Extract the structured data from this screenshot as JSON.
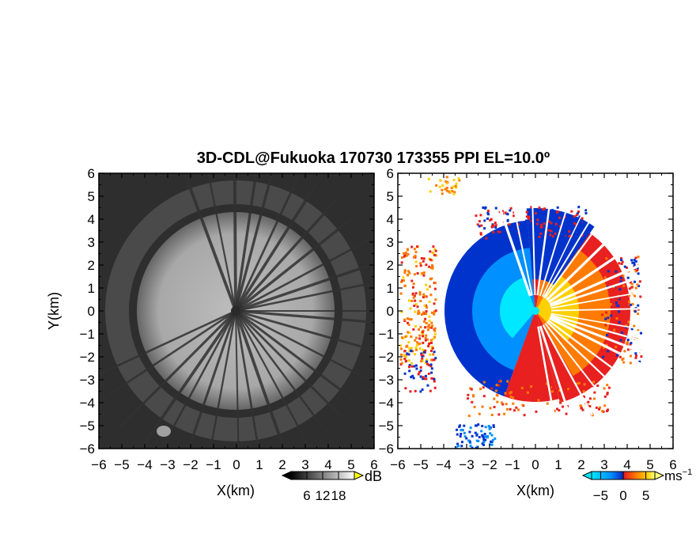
{
  "chart_data": [
    {
      "type": "heatmap",
      "title": "3D-CDL@Fukuoka 170730 173355 PPI EL=10.0º",
      "panel": "reflectivity",
      "xlabel": "X(km)",
      "ylabel": "Y(km)",
      "xlim": [
        -6,
        6
      ],
      "ylim": [
        -6,
        6
      ],
      "xticks": [
        "-6",
        "-5",
        "-4",
        "-3",
        "-2",
        "-1",
        "0",
        "1",
        "2",
        "3",
        "4",
        "5",
        "6"
      ],
      "yticks": [
        "6",
        "5",
        "4",
        "3",
        "2",
        "1",
        "0",
        "-1",
        "-2",
        "-3",
        "-4",
        "-5",
        "-6"
      ],
      "colorbar": {
        "unit": "dB",
        "ticks": [
          "6",
          "12",
          "18"
        ],
        "range": [
          0,
          24
        ],
        "colors": [
          "#000000",
          "#ffffff"
        ]
      },
      "grid": false
    },
    {
      "type": "heatmap",
      "panel": "doppler-velocity",
      "xlabel": "X(km)",
      "xlim": [
        -6,
        6
      ],
      "ylim": [
        -6,
        6
      ],
      "xticks": [
        "-6",
        "-5",
        "-4",
        "-3",
        "-2",
        "-1",
        "0",
        "1",
        "2",
        "3",
        "4",
        "5",
        "6"
      ],
      "yticks": [
        "6",
        "5",
        "4",
        "3",
        "2",
        "1",
        "0",
        "-1",
        "-2",
        "-3",
        "-4",
        "-5",
        "-6"
      ],
      "colorbar": {
        "unit": "ms",
        "unit_exponent": "−1",
        "ticks": [
          "−5",
          "0",
          "5"
        ],
        "range": [
          -7,
          7
        ],
        "colors": [
          "#00e8ff",
          "#0090ff",
          "#0033cc",
          "#e82020",
          "#ff7a00",
          "#ffd000",
          "#ffff80"
        ]
      },
      "grid": false
    }
  ]
}
